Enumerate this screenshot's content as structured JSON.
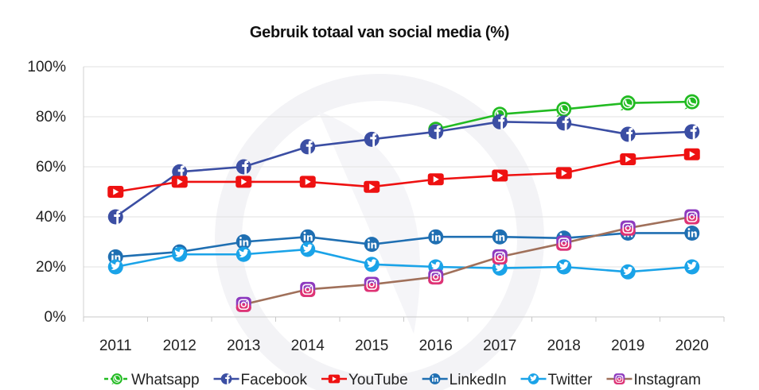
{
  "chart_data": {
    "type": "line",
    "title": "Gebruik totaal van social media (%)",
    "xlabel": "",
    "ylabel": "",
    "ylim": [
      0,
      100
    ],
    "yticks": [
      0,
      20,
      40,
      60,
      80,
      100
    ],
    "ytick_labels": [
      "0%",
      "20%",
      "40%",
      "60%",
      "80%",
      "100%"
    ],
    "grid": true,
    "legend_position": "bottom",
    "categories": [
      "2011",
      "2012",
      "2013",
      "2014",
      "2015",
      "2016",
      "2017",
      "2018",
      "2019",
      "2020"
    ],
    "series": [
      {
        "name": "Whatsapp",
        "color": "#22bb22",
        "icon": "whatsapp-icon",
        "values": [
          null,
          null,
          null,
          null,
          null,
          75,
          81,
          83,
          85.5,
          86
        ]
      },
      {
        "name": "Facebook",
        "color": "#3b4ea3",
        "icon": "facebook-icon",
        "values": [
          40,
          58,
          60,
          68,
          71,
          74,
          78,
          77.5,
          73,
          74
        ]
      },
      {
        "name": "YouTube",
        "color": "#ee1111",
        "icon": "youtube-icon",
        "values": [
          50,
          54,
          54,
          54,
          52,
          55,
          56.5,
          57.5,
          63,
          65
        ]
      },
      {
        "name": "LinkedIn",
        "color": "#1f6fb2",
        "icon": "linkedin-icon",
        "values": [
          24,
          26,
          30,
          32,
          29,
          32,
          32,
          31.5,
          33.5,
          33.5
        ]
      },
      {
        "name": "Twitter",
        "color": "#1aa3e8",
        "icon": "twitter-icon",
        "values": [
          20,
          25,
          25,
          27,
          21,
          20,
          19.5,
          20,
          18,
          20
        ]
      },
      {
        "name": "Instagram",
        "color": "#a0705a",
        "icon": "instagram-icon",
        "values": [
          null,
          null,
          5,
          11,
          13,
          16,
          24,
          29.5,
          35.5,
          40
        ]
      }
    ]
  }
}
